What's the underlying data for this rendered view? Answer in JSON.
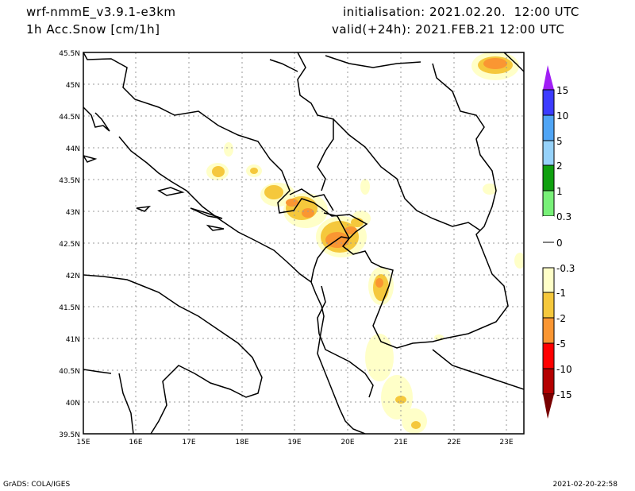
{
  "header": {
    "model": "wrf-nmmE_v3.9.1-e3km",
    "field": "1h Acc.Snow [cm/1h]",
    "init": "initialisation: 2021.02.20.  12:00 UTC",
    "valid": "valid(+24h): 2021.FEB.21 12:00 UTC"
  },
  "axes": {
    "lon_ticks": [
      "15E",
      "16E",
      "17E",
      "18E",
      "19E",
      "20E",
      "21E",
      "22E",
      "23E"
    ],
    "lat_ticks": [
      "45.5N",
      "45N",
      "44.5N",
      "44N",
      "43.5N",
      "43N",
      "42.5N",
      "42N",
      "41.5N",
      "41N",
      "40.5N",
      "40N",
      "39.5N"
    ]
  },
  "colorbar": {
    "labels": [
      "15",
      "10",
      "5",
      "2",
      "1",
      "0.3",
      "0",
      "-0.3",
      "-1",
      "-2",
      "-5",
      "-10",
      "-15"
    ],
    "colors": {
      "over": "#a01ef5",
      "c1": "#3c3cff",
      "c2": "#50a5f5",
      "c3": "#96d2fa",
      "c4": "#0fa00f",
      "c5": "#78f078",
      "zero": "#ffffff",
      "c6": "#ffffc8",
      "c7": "#f5c83c",
      "c8": "#fa9632",
      "c9": "#ff0000",
      "c10": "#b40000",
      "under": "#780000"
    }
  },
  "footer": {
    "left": "GrADS: COLA/IGES",
    "right": "2021-02-20-22:58"
  }
}
